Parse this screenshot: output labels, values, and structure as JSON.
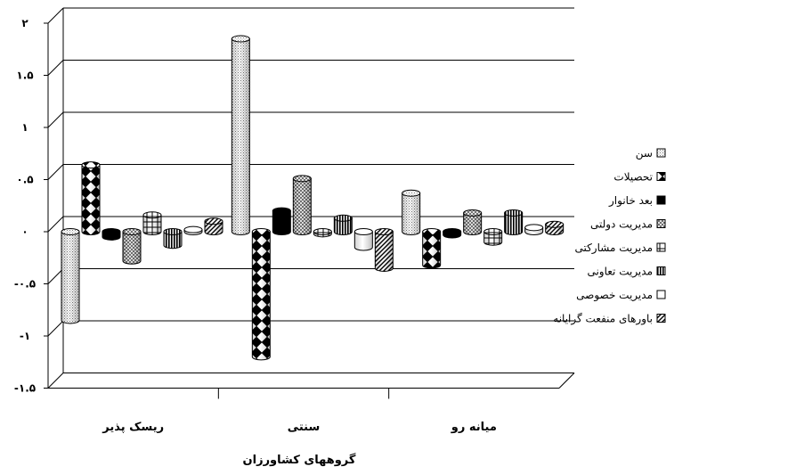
{
  "chart_data": {
    "type": "bar",
    "xlabel": "گروههای کشاورزان",
    "ylabel": "",
    "ylim": [
      -1.5,
      2
    ],
    "y_ticks": [
      -1.5,
      -1,
      -0.5,
      0,
      0.5,
      1,
      1.5,
      2
    ],
    "y_tick_labels": [
      "-۱.۵",
      "-۱",
      "-۰.۵",
      "۰",
      "۰.۵",
      "۱",
      "۱.۵",
      "۲"
    ],
    "grid": true,
    "legend_position": "right",
    "categories": [
      "ریسک پذیر",
      "سنتی",
      "میانه رو"
    ],
    "series": [
      {
        "name": "سن",
        "values": [
          -0.85,
          1.85,
          0.37
        ]
      },
      {
        "name": "تحصیلات",
        "values": [
          0.64,
          -1.2,
          -0.32
        ]
      },
      {
        "name": "بعد خانوار",
        "values": [
          -0.05,
          0.2,
          -0.03
        ]
      },
      {
        "name": "مدیریت دولتی",
        "values": [
          -0.28,
          0.51,
          0.18
        ]
      },
      {
        "name": "مدیریت مشارکتی",
        "values": [
          0.16,
          -0.02,
          -0.1
        ]
      },
      {
        "name": "مدیریت تعاونی",
        "values": [
          -0.13,
          0.13,
          0.18
        ]
      },
      {
        "name": "مدیریت خصوصی",
        "values": [
          0.02,
          -0.15,
          0.04
        ]
      },
      {
        "name": "باورهای منفعت گرایانه",
        "values": [
          0.1,
          -0.35,
          0.07
        ]
      }
    ]
  },
  "colors": {
    "background": "#ffffff",
    "gridline": "#000000",
    "bar_fill": "#ffffff",
    "bar_pattern": "#000000"
  }
}
